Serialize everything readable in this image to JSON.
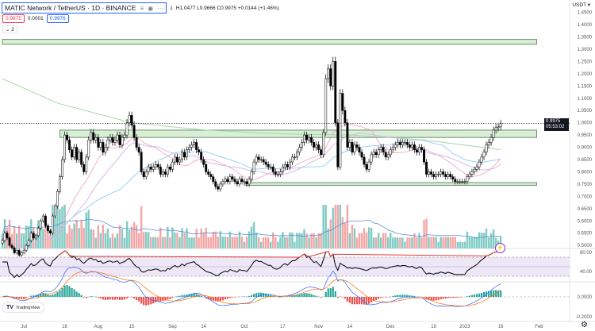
{
  "header": {
    "symbol": "MATIC Network / TetherUS · 1D · BINANCE",
    "icons": [
      "list-icon",
      "eye-icon",
      "more-icon"
    ],
    "ohlc_prefix": "1",
    "ohlc": "H1.0477 L0.9666 C0.9975 +0.0144 (+1.46%)",
    "bid": "0.9975",
    "spread": "0.0001",
    "ask": "0.9976",
    "indicators_toggle": "2"
  },
  "currency": "USDT",
  "last_price_label": {
    "price": "0.9975",
    "countdown": "05:53:02"
  },
  "logo": "TradingView",
  "colors": {
    "up_body": "#ffffff",
    "down_body": "#000000",
    "vol_up": "#80cbc4",
    "vol_down": "#f4a6a6",
    "ma_long": "#a5d6a7",
    "ma_mid": "#90caf9",
    "ma_short": "#f3a7c0",
    "zone_fill": "#d8efd6",
    "zone_border": "#6b8f6b",
    "rsi_band": "#ede7f6"
  },
  "chart_data": {
    "type": "candlestick",
    "start_date": "2022-06-22",
    "close": [
      0.52,
      0.55,
      0.53,
      0.5,
      0.49,
      0.47,
      0.48,
      0.46,
      0.47,
      0.48,
      0.5,
      0.52,
      0.55,
      0.53,
      0.54,
      0.57,
      0.6,
      0.62,
      0.58,
      0.56,
      0.55,
      0.62,
      0.66,
      0.72,
      0.78,
      0.85,
      0.95,
      0.93,
      0.89,
      0.86,
      0.9,
      0.85,
      0.88,
      0.83,
      0.8,
      0.86,
      0.93,
      0.96,
      0.93,
      0.94,
      0.9,
      0.92,
      0.88,
      0.9,
      0.93,
      0.94,
      0.92,
      0.93,
      0.95,
      0.91,
      0.94,
      0.95,
      1.0,
      1.03,
      0.99,
      0.94,
      0.9,
      0.88,
      0.8,
      0.78,
      0.8,
      0.82,
      0.81,
      0.82,
      0.83,
      0.82,
      0.79,
      0.8,
      0.79,
      0.82,
      0.81,
      0.84,
      0.86,
      0.84,
      0.85,
      0.88,
      0.86,
      0.89,
      0.9,
      0.91,
      0.92,
      0.89,
      0.88,
      0.85,
      0.83,
      0.8,
      0.79,
      0.78,
      0.76,
      0.74,
      0.73,
      0.75,
      0.76,
      0.77,
      0.76,
      0.78,
      0.77,
      0.76,
      0.75,
      0.77,
      0.76,
      0.76,
      0.75,
      0.77,
      0.8,
      0.84,
      0.86,
      0.85,
      0.85,
      0.84,
      0.83,
      0.82,
      0.82,
      0.8,
      0.79,
      0.79,
      0.8,
      0.82,
      0.83,
      0.82,
      0.84,
      0.86,
      0.86,
      0.88,
      0.9,
      0.92,
      0.95,
      0.93,
      0.94,
      0.92,
      0.9,
      0.91,
      0.89,
      0.87,
      0.96,
      1.18,
      1.22,
      1.15,
      1.25,
      1.0,
      0.82,
      1.12,
      1.05,
      1.0,
      0.9,
      0.92,
      0.88,
      0.91,
      0.9,
      0.88,
      0.86,
      0.83,
      0.81,
      0.84,
      0.87,
      0.88,
      0.87,
      0.89,
      0.9,
      0.88,
      0.86,
      0.87,
      0.89,
      0.9,
      0.91,
      0.92,
      0.91,
      0.92,
      0.92,
      0.91,
      0.9,
      0.91,
      0.89,
      0.88,
      0.9,
      0.89,
      0.84,
      0.79,
      0.8,
      0.79,
      0.78,
      0.79,
      0.79,
      0.8,
      0.79,
      0.78,
      0.79,
      0.78,
      0.77,
      0.76,
      0.76,
      0.76,
      0.76,
      0.76,
      0.78,
      0.79,
      0.8,
      0.81,
      0.82,
      0.84,
      0.86,
      0.88,
      0.91,
      0.92,
      0.94,
      0.97,
      0.98,
      0.9831,
      0.9975
    ],
    "long_ma": [
      [
        "2022-06-22",
        1.18
      ],
      [
        "2022-07-15",
        1.08
      ],
      [
        "2022-08-15",
        1.0
      ],
      [
        "2022-09-15",
        0.97
      ],
      [
        "2022-10-15",
        0.955
      ],
      [
        "2022-11-15",
        0.95
      ],
      [
        "2022-12-15",
        0.93
      ],
      [
        "2023-01-16",
        0.89
      ]
    ],
    "zones": [
      {
        "from": "2022-06-22",
        "to": "2023-01-31",
        "low": 1.32,
        "high": 1.34
      },
      {
        "from": "2022-07-16",
        "to": "2023-01-31",
        "low": 0.94,
        "high": 0.97
      },
      {
        "from": "2022-10-01",
        "to": "2023-01-31",
        "low": 0.745,
        "high": 0.756
      }
    ],
    "last_price": 0.9975,
    "price_ticks": [
      "1.4500",
      "1.4000",
      "1.3500",
      "1.3000",
      "1.2500",
      "1.2000",
      "1.1500",
      "1.1000",
      "1.0500",
      "1.0000",
      "0.9500",
      "0.9000",
      "0.8500",
      "0.8000",
      "0.7500",
      "0.7000",
      "0.6500",
      "0.6000",
      "0.5500",
      "0.5000"
    ],
    "rsi_ticks": [
      "80.00",
      "40.00"
    ],
    "macd_ticks": [
      "0.0000",
      "-0.2000"
    ],
    "time_ticks": [
      [
        "2022-07-01",
        "Jul"
      ],
      [
        "2022-07-18",
        "18"
      ],
      [
        "2022-08-01",
        "Aug"
      ],
      [
        "2022-08-15",
        "15"
      ],
      [
        "2022-09-01",
        "Sep"
      ],
      [
        "2022-09-14",
        "14"
      ],
      [
        "2022-10-01",
        "Oct"
      ],
      [
        "2022-10-17",
        "17"
      ],
      [
        "2022-11-01",
        "Nov"
      ],
      [
        "2022-11-14",
        "14"
      ],
      [
        "2022-12-01",
        "Dec"
      ],
      [
        "2022-12-19",
        "19"
      ],
      [
        "2023-01-01",
        "2023"
      ],
      [
        "2023-01-16",
        "16"
      ],
      [
        "2023-02-01",
        "Feb"
      ]
    ]
  }
}
